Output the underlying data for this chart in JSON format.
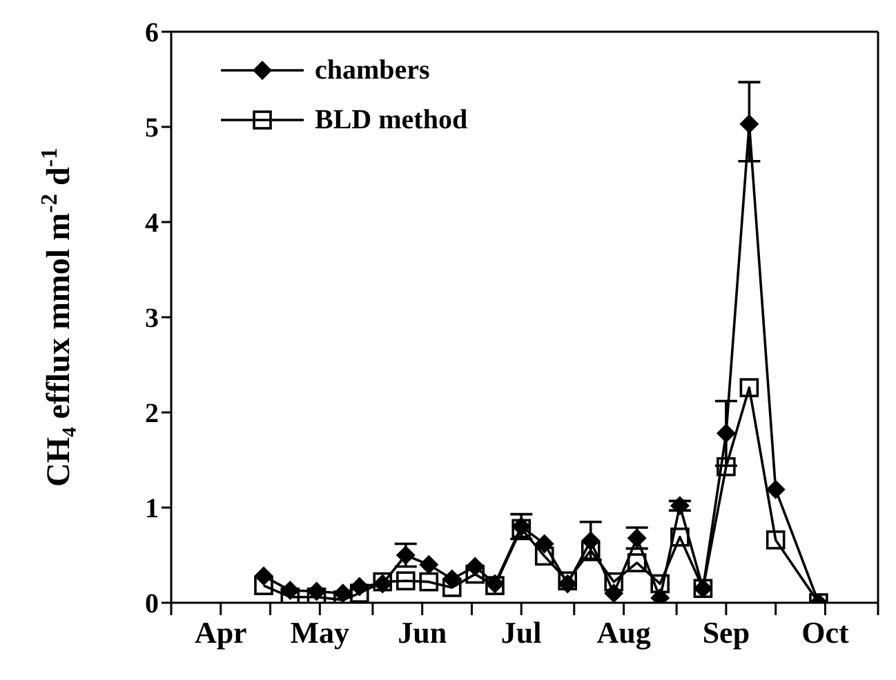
{
  "chart_data": {
    "type": "line",
    "ylabel": "CH₄ efflux mmol m$^{-2}$ d$^{-1}$",
    "xlim": [
      "--04-01",
      "--11-01"
    ],
    "xticks": [
      {
        "value": "--04-01",
        "label": null
      },
      {
        "value": "--04-16",
        "label": "Apr"
      },
      {
        "value": "--05-01",
        "label": null
      },
      {
        "value": "--05-16",
        "label": "May"
      },
      {
        "value": "--06-01",
        "label": null
      },
      {
        "value": "--06-16",
        "label": "Jun"
      },
      {
        "value": "--07-01",
        "label": null
      },
      {
        "value": "--07-16",
        "label": "Jul"
      },
      {
        "value": "--08-01",
        "label": null
      },
      {
        "value": "--08-16",
        "label": "Aug"
      },
      {
        "value": "--09-01",
        "label": null
      },
      {
        "value": "--09-16",
        "label": "Sep"
      },
      {
        "value": "--10-01",
        "label": null
      },
      {
        "value": "--10-16",
        "label": "Oct"
      },
      {
        "value": "--11-01",
        "label": null
      }
    ],
    "ylim": [
      0,
      6
    ],
    "yticks": [
      0,
      1,
      2,
      3,
      4,
      5,
      6
    ],
    "x": [
      "--04-29",
      "--05-07",
      "--05-15",
      "--05-23",
      "--05-28",
      "--06-04",
      "--06-11",
      "--06-18",
      "--06-25",
      "--07-02",
      "--07-08",
      "--07-16",
      "--07-23",
      "--07-30",
      "--08-06",
      "--08-13",
      "--08-20",
      "--08-27",
      "--09-02",
      "--09-09",
      "--09-16",
      "--09-23",
      "--10-01",
      "--10-14"
    ],
    "series": [
      {
        "name": "chambers",
        "color": "#000000",
        "marker": "diamond",
        "values": [
          0.28,
          0.13,
          0.12,
          0.1,
          0.17,
          0.2,
          0.5,
          0.4,
          0.25,
          0.38,
          0.2,
          0.8,
          0.62,
          0.2,
          0.65,
          0.1,
          0.68,
          0.05,
          1.02,
          0.15,
          1.78,
          5.03,
          1.19,
          0
        ],
        "errors": [
          null,
          null,
          null,
          null,
          null,
          null,
          0.12,
          null,
          null,
          null,
          null,
          0.13,
          null,
          null,
          0.2,
          null,
          0.11,
          null,
          0.05,
          null,
          0.34,
          [
            4.64,
            5.47
          ],
          null,
          null
        ]
      },
      {
        "name": "BLD method",
        "color": "#000000",
        "marker": "square",
        "values": [
          0.18,
          0.06,
          0.06,
          0.03,
          0.1,
          0.22,
          0.23,
          0.22,
          0.16,
          0.3,
          0.18,
          0.78,
          0.49,
          0.23,
          0.55,
          0.22,
          0.42,
          0.2,
          0.69,
          0.15,
          1.43,
          2.26,
          0.66,
          0
        ]
      }
    ],
    "legend": "top left",
    "grid": false
  }
}
